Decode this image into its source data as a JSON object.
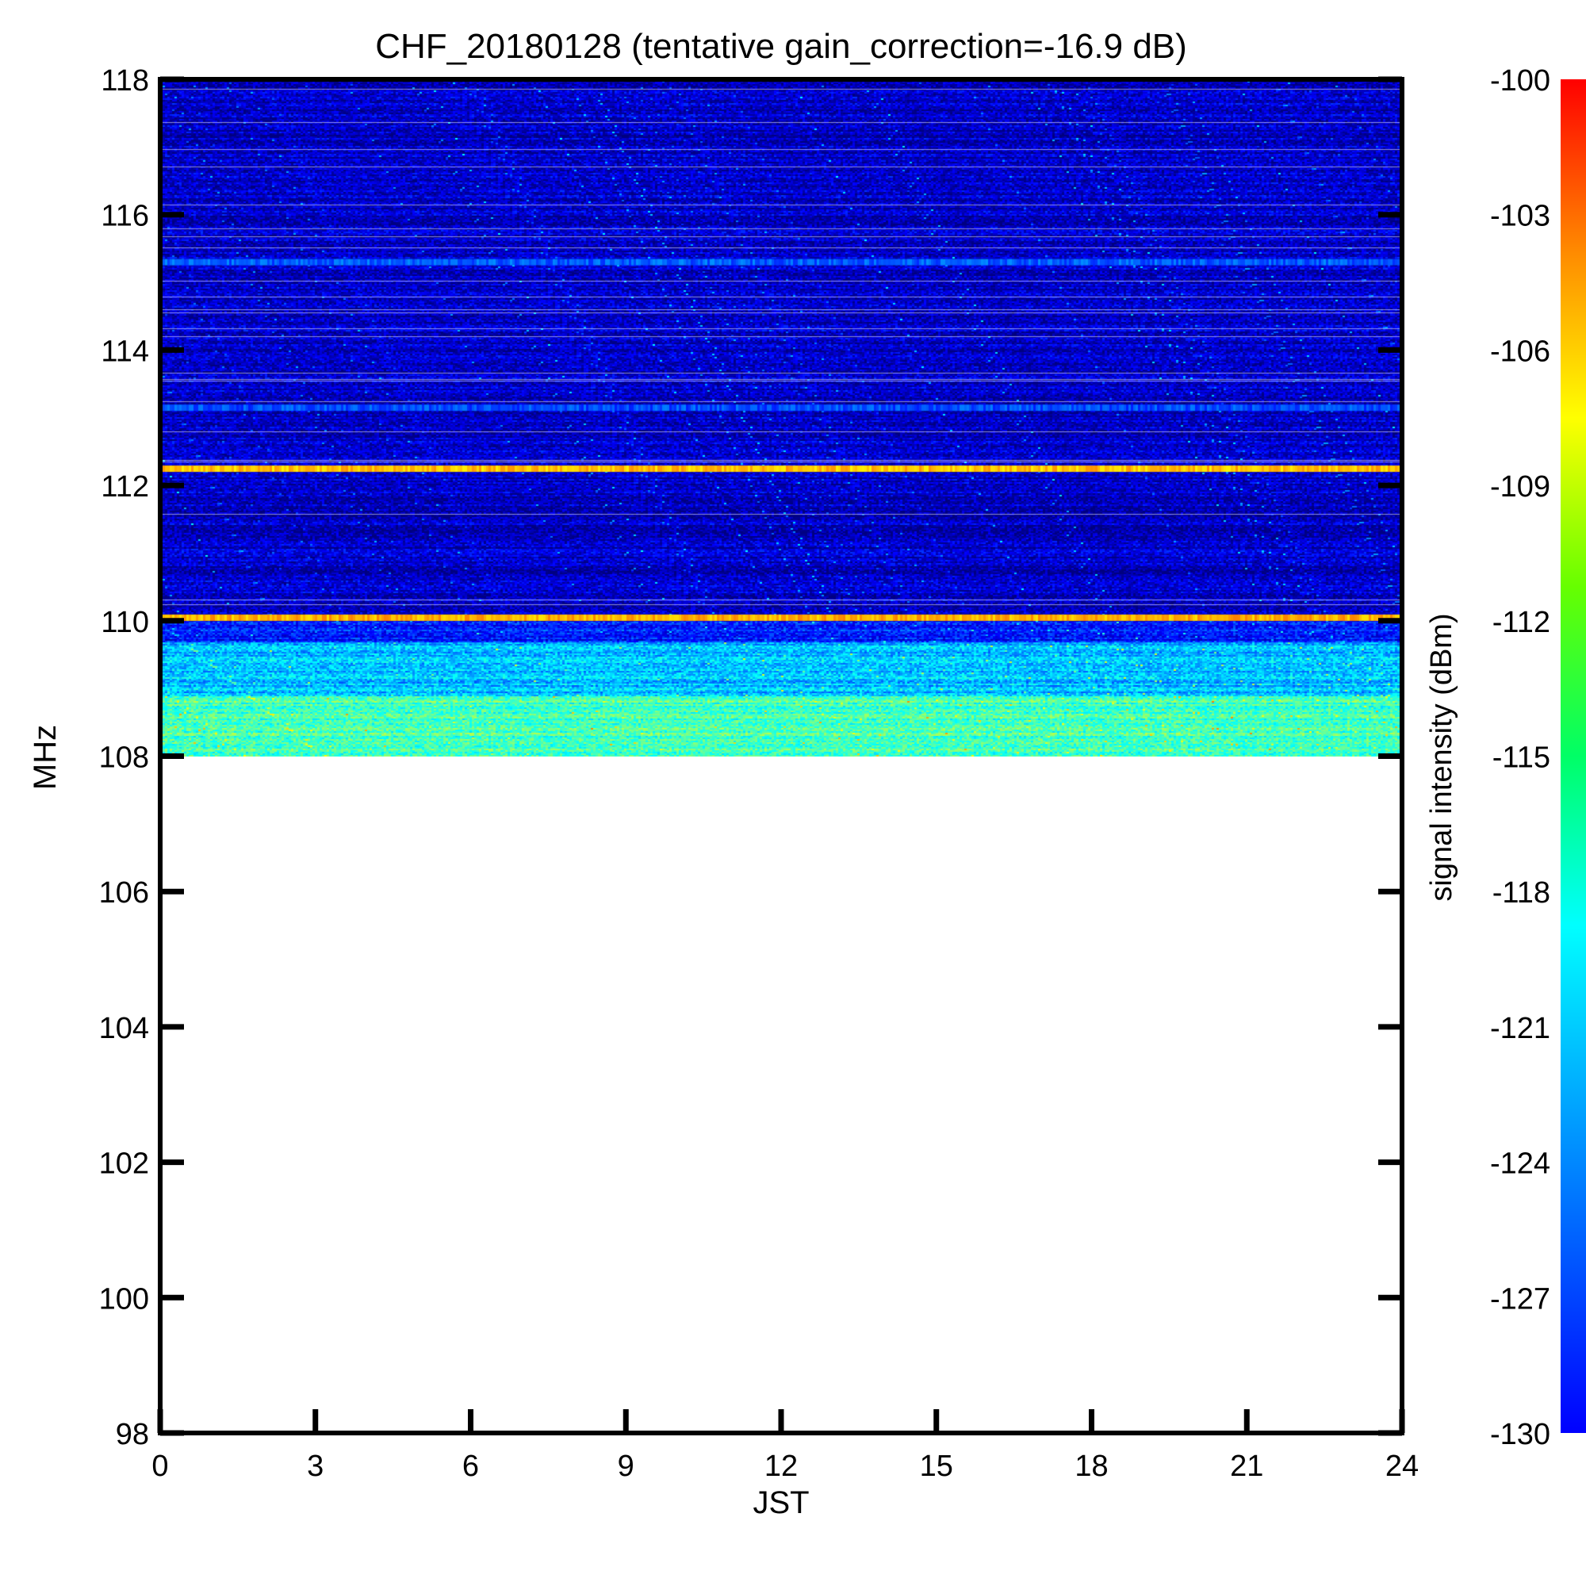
{
  "chart_data": {
    "type": "heatmap",
    "title": "CHF_20180128 (tentative gain_correction=-16.9 dB)",
    "xlabel": "JST",
    "ylabel": "MHz",
    "xlim": [
      0,
      24
    ],
    "ylim": [
      98,
      118
    ],
    "x_ticks": [
      0,
      3,
      6,
      9,
      12,
      15,
      18,
      21,
      24
    ],
    "y_ticks": [
      98,
      100,
      102,
      104,
      106,
      108,
      110,
      112,
      114,
      116,
      118
    ],
    "data_extent": {
      "x": [
        0,
        24
      ],
      "y": [
        108,
        118
      ]
    },
    "background_level": [
      {
        "y_from": 108.0,
        "y_to": 108.9,
        "value": -116.5
      },
      {
        "y_from": 108.9,
        "y_to": 109.7,
        "value": -120.5
      },
      {
        "y_from": 109.7,
        "y_to": 110.0,
        "value": -125.5
      },
      {
        "y_from": 110.0,
        "y_to": 118.0,
        "value": -128.0
      }
    ],
    "strong_lines": [
      {
        "freq": 110.05,
        "value": -109.0
      },
      {
        "freq": 112.25,
        "value": -109.5
      },
      {
        "freq": 115.3,
        "value": -123.5
      },
      {
        "freq": 113.15,
        "value": -124.0
      }
    ],
    "colorbar": {
      "label": "signal intensity (dBm)",
      "range": [
        -130,
        -100
      ],
      "ticks": [
        -100,
        -103,
        -106,
        -109,
        -112,
        -115,
        -118,
        -121,
        -124,
        -127,
        -130
      ],
      "colormap": "jet"
    },
    "colors": {
      "axis": "#000000",
      "background": "#ffffff"
    }
  }
}
